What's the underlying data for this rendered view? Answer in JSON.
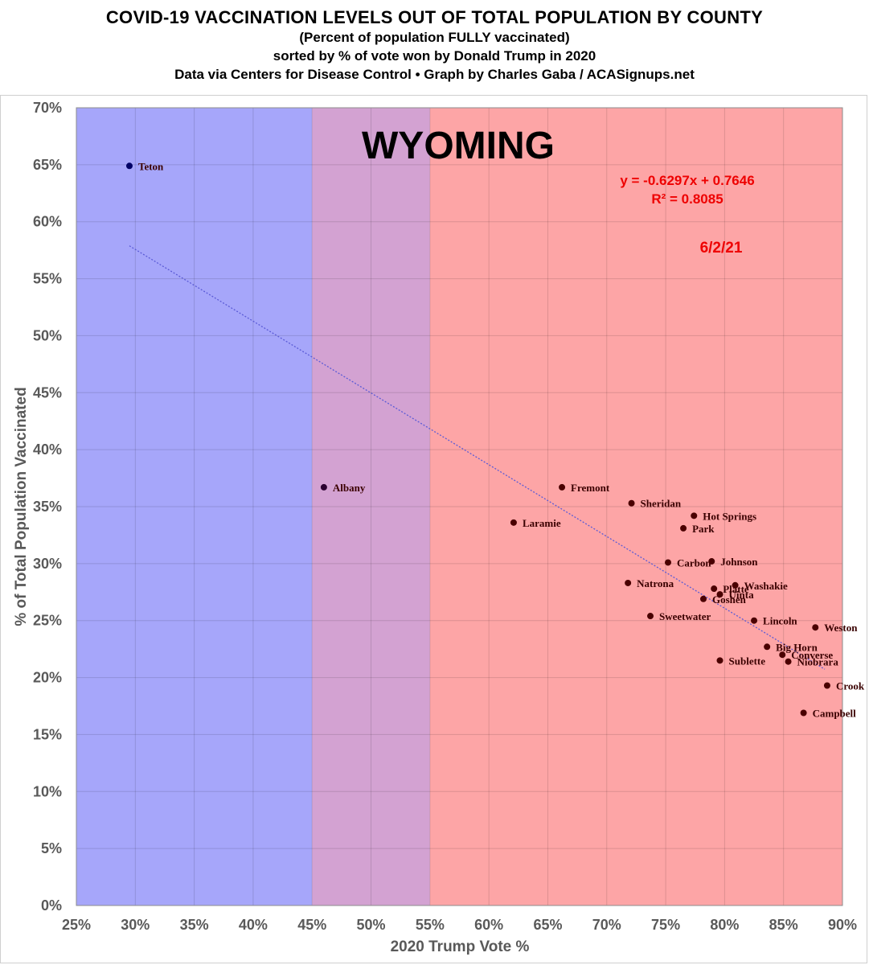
{
  "header": {
    "title": "COVID-19 VACCINATION LEVELS OUT OF TOTAL POPULATION BY COUNTY",
    "subtitle1": "(Percent of population FULLY vaccinated)",
    "subtitle2": "sorted by % of vote won by Donald Trump in 2020",
    "subtitle3": "Data via Centers for Disease Control • Graph by Charles Gaba / ACASignups.net"
  },
  "chart_data": {
    "type": "scatter",
    "state_label": "WYOMING",
    "xlabel": "2020 Trump Vote %",
    "ylabel": "% of Total Population Vaccinated",
    "xlim": [
      0.25,
      0.9
    ],
    "ylim": [
      0.0,
      0.7
    ],
    "x_ticks": [
      "25%",
      "30%",
      "35%",
      "40%",
      "45%",
      "50%",
      "55%",
      "60%",
      "65%",
      "70%",
      "75%",
      "80%",
      "85%",
      "90%"
    ],
    "y_ticks": [
      "0%",
      "5%",
      "10%",
      "15%",
      "20%",
      "25%",
      "30%",
      "35%",
      "40%",
      "45%",
      "50%",
      "55%",
      "60%",
      "65%",
      "70%"
    ],
    "grid": true,
    "bands": [
      {
        "from": 0.25,
        "to": 0.45,
        "color": "#a6a6fa"
      },
      {
        "from": 0.45,
        "to": 0.55,
        "color": "#d3a2d2"
      },
      {
        "from": 0.55,
        "to": 0.9,
        "color": "#fda5a6"
      }
    ],
    "trendline": {
      "slope": -0.6297,
      "intercept": 0.7646,
      "x_range": [
        0.295,
        0.885
      ],
      "equation": "y = -0.6297x + 0.7646",
      "r_squared": "R² = 0.8085",
      "color": "#5b5bd6"
    },
    "date": "6/2/21",
    "points": [
      {
        "name": "Teton",
        "x": 0.295,
        "y": 0.649,
        "color": "#000066",
        "label_color": "#000033"
      },
      {
        "name": "Albany",
        "x": 0.46,
        "y": 0.367,
        "color": "#2a0030",
        "label_color": "#2a0030"
      },
      {
        "name": "Laramie",
        "x": 0.621,
        "y": 0.336
      },
      {
        "name": "Fremont",
        "x": 0.662,
        "y": 0.367
      },
      {
        "name": "Sheridan",
        "x": 0.721,
        "y": 0.353
      },
      {
        "name": "Hot Springs",
        "x": 0.774,
        "y": 0.342
      },
      {
        "name": "Park",
        "x": 0.765,
        "y": 0.331
      },
      {
        "name": "Carbon",
        "x": 0.752,
        "y": 0.301
      },
      {
        "name": "Johnson",
        "x": 0.789,
        "y": 0.302
      },
      {
        "name": "Natrona",
        "x": 0.718,
        "y": 0.283
      },
      {
        "name": "Washakie",
        "x": 0.809,
        "y": 0.281
      },
      {
        "name": "Platte",
        "x": 0.791,
        "y": 0.278
      },
      {
        "name": "Uinta",
        "x": 0.796,
        "y": 0.273
      },
      {
        "name": "Goshen",
        "x": 0.782,
        "y": 0.269
      },
      {
        "name": "Sweetwater",
        "x": 0.737,
        "y": 0.254
      },
      {
        "name": "Lincoln",
        "x": 0.825,
        "y": 0.25
      },
      {
        "name": "Weston",
        "x": 0.877,
        "y": 0.244
      },
      {
        "name": "Big Horn",
        "x": 0.836,
        "y": 0.227
      },
      {
        "name": "Converse",
        "x": 0.849,
        "y": 0.22
      },
      {
        "name": "Niobrara",
        "x": 0.854,
        "y": 0.214
      },
      {
        "name": "Sublette",
        "x": 0.796,
        "y": 0.215
      },
      {
        "name": "Crook",
        "x": 0.887,
        "y": 0.193
      },
      {
        "name": "Campbell",
        "x": 0.867,
        "y": 0.169
      }
    ]
  }
}
